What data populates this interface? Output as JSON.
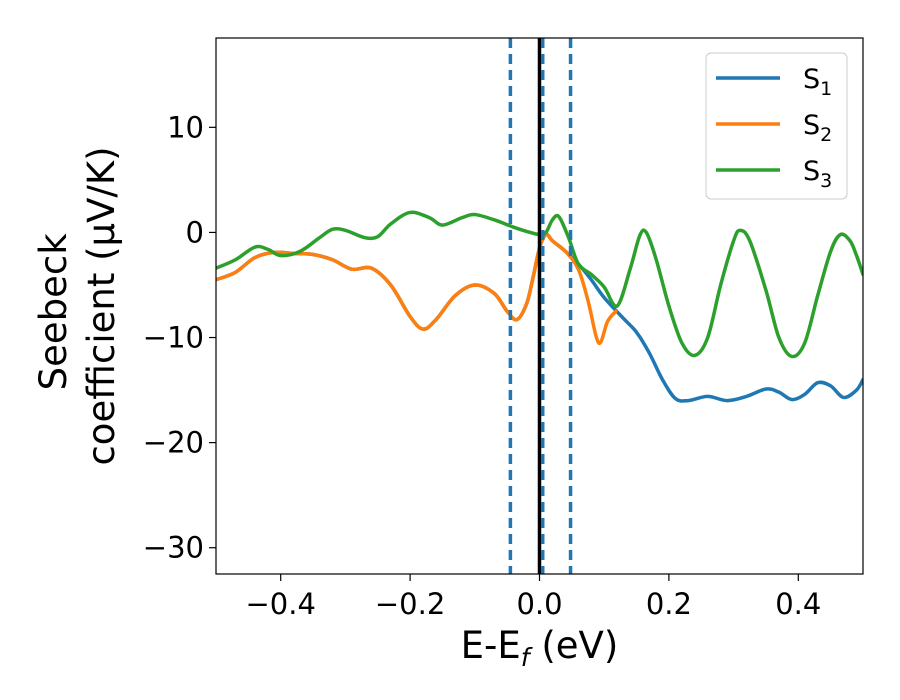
{
  "chart_data": {
    "type": "line",
    "xlabel": {
      "base": "E-E",
      "sub": "f",
      "rest": " (eV)"
    },
    "ylabel": {
      "line1": "Seebeck",
      "line2": "coefficient  (μV/K)"
    },
    "xlim": [
      -0.5,
      0.5
    ],
    "ylim": [
      -32.5,
      18.5
    ],
    "xticks": [
      -0.4,
      -0.2,
      0.0,
      0.2,
      0.4
    ],
    "xtick_labels": [
      "−0.4",
      "−0.2",
      "0.0",
      "0.2",
      "0.4"
    ],
    "yticks": [
      -30,
      -20,
      -10,
      0,
      10
    ],
    "ytick_labels": [
      "−30",
      "−20",
      "−10",
      "0",
      "10"
    ],
    "grid": false,
    "legend_position": "top-right",
    "vlines": [
      {
        "x": 0.0,
        "style": "solid",
        "color": "#000000"
      },
      {
        "x": -0.045,
        "style": "dashed",
        "color": "#1f77b4"
      },
      {
        "x": 0.005,
        "style": "dashed",
        "color": "#1f77b4"
      },
      {
        "x": 0.048,
        "style": "dashed",
        "color": "#1f77b4"
      }
    ],
    "series": [
      {
        "name": "S",
        "sub": "1",
        "color": "#1f77b4",
        "points": [
          [
            -0.5,
            -4.5
          ],
          [
            -0.47,
            -3.8
          ],
          [
            -0.44,
            -2.4
          ],
          [
            -0.41,
            -1.9
          ],
          [
            -0.38,
            -2.0
          ],
          [
            -0.35,
            -2.1
          ],
          [
            -0.32,
            -2.6
          ],
          [
            -0.29,
            -3.5
          ],
          [
            -0.26,
            -3.4
          ],
          [
            -0.23,
            -5.0
          ],
          [
            -0.2,
            -8.0
          ],
          [
            -0.18,
            -9.2
          ],
          [
            -0.16,
            -8.3
          ],
          [
            -0.13,
            -6.0
          ],
          [
            -0.1,
            -5.0
          ],
          [
            -0.07,
            -5.8
          ],
          [
            -0.05,
            -7.5
          ],
          [
            -0.035,
            -8.3
          ],
          [
            -0.02,
            -6.8
          ],
          [
            -0.01,
            -4.3
          ],
          [
            0.0,
            -1.5
          ],
          [
            0.01,
            -0.2
          ],
          [
            0.02,
            -0.8
          ],
          [
            0.04,
            -1.8
          ],
          [
            0.06,
            -3.0
          ],
          [
            0.08,
            -4.5
          ],
          [
            0.1,
            -6.2
          ],
          [
            0.13,
            -8.2
          ],
          [
            0.15,
            -9.5
          ],
          [
            0.17,
            -11.5
          ],
          [
            0.19,
            -14.0
          ],
          [
            0.21,
            -15.8
          ],
          [
            0.23,
            -16.0
          ],
          [
            0.26,
            -15.6
          ],
          [
            0.29,
            -16.0
          ],
          [
            0.32,
            -15.6
          ],
          [
            0.35,
            -14.9
          ],
          [
            0.37,
            -15.2
          ],
          [
            0.39,
            -15.9
          ],
          [
            0.41,
            -15.4
          ],
          [
            0.43,
            -14.3
          ],
          [
            0.45,
            -14.6
          ],
          [
            0.47,
            -15.7
          ],
          [
            0.49,
            -15.0
          ],
          [
            0.5,
            -14.0
          ]
        ]
      },
      {
        "name": "S",
        "sub": "2",
        "color": "#ff7f0e",
        "points": [
          [
            -0.5,
            -4.5
          ],
          [
            -0.47,
            -3.8
          ],
          [
            -0.44,
            -2.4
          ],
          [
            -0.41,
            -1.9
          ],
          [
            -0.38,
            -2.0
          ],
          [
            -0.35,
            -2.1
          ],
          [
            -0.32,
            -2.6
          ],
          [
            -0.29,
            -3.5
          ],
          [
            -0.26,
            -3.4
          ],
          [
            -0.23,
            -5.0
          ],
          [
            -0.2,
            -8.0
          ],
          [
            -0.18,
            -9.2
          ],
          [
            -0.16,
            -8.3
          ],
          [
            -0.13,
            -6.0
          ],
          [
            -0.1,
            -5.0
          ],
          [
            -0.07,
            -5.8
          ],
          [
            -0.05,
            -7.5
          ],
          [
            -0.035,
            -8.3
          ],
          [
            -0.02,
            -6.8
          ],
          [
            -0.01,
            -4.3
          ],
          [
            0.0,
            -1.5
          ],
          [
            0.01,
            -0.2
          ],
          [
            0.02,
            -0.8
          ],
          [
            0.04,
            -1.8
          ],
          [
            0.06,
            -3.5
          ],
          [
            0.075,
            -6.5
          ],
          [
            0.088,
            -10.0
          ],
          [
            0.095,
            -10.4
          ],
          [
            0.105,
            -8.5
          ],
          [
            0.118,
            -7.5
          ]
        ]
      },
      {
        "name": "S",
        "sub": "3",
        "color": "#2ca02c",
        "points": [
          [
            -0.5,
            -3.4
          ],
          [
            -0.47,
            -2.6
          ],
          [
            -0.44,
            -1.4
          ],
          [
            -0.42,
            -1.6
          ],
          [
            -0.4,
            -2.2
          ],
          [
            -0.37,
            -1.8
          ],
          [
            -0.34,
            -0.5
          ],
          [
            -0.32,
            0.3
          ],
          [
            -0.3,
            0.2
          ],
          [
            -0.27,
            -0.5
          ],
          [
            -0.25,
            -0.4
          ],
          [
            -0.23,
            0.8
          ],
          [
            -0.2,
            1.9
          ],
          [
            -0.17,
            1.4
          ],
          [
            -0.15,
            0.7
          ],
          [
            -0.12,
            1.4
          ],
          [
            -0.1,
            1.7
          ],
          [
            -0.07,
            1.2
          ],
          [
            -0.04,
            0.5
          ],
          [
            -0.02,
            0.1
          ],
          [
            0.0,
            -0.2
          ],
          [
            0.01,
            0.0
          ],
          [
            0.02,
            1.2
          ],
          [
            0.03,
            1.5
          ],
          [
            0.045,
            -0.5
          ],
          [
            0.06,
            -3.0
          ],
          [
            0.08,
            -4.0
          ],
          [
            0.1,
            -5.2
          ],
          [
            0.12,
            -7.0
          ],
          [
            0.14,
            -3.5
          ],
          [
            0.155,
            -0.3
          ],
          [
            0.165,
            0.0
          ],
          [
            0.18,
            -2.5
          ],
          [
            0.2,
            -7.0
          ],
          [
            0.22,
            -10.5
          ],
          [
            0.24,
            -11.7
          ],
          [
            0.26,
            -10.0
          ],
          [
            0.28,
            -5.0
          ],
          [
            0.3,
            -0.8
          ],
          [
            0.31,
            0.2
          ],
          [
            0.325,
            -0.8
          ],
          [
            0.35,
            -5.5
          ],
          [
            0.37,
            -10.0
          ],
          [
            0.39,
            -11.8
          ],
          [
            0.41,
            -10.5
          ],
          [
            0.43,
            -6.0
          ],
          [
            0.45,
            -1.8
          ],
          [
            0.465,
            -0.2
          ],
          [
            0.48,
            -0.8
          ],
          [
            0.49,
            -2.2
          ],
          [
            0.5,
            -4.0
          ]
        ]
      }
    ]
  }
}
